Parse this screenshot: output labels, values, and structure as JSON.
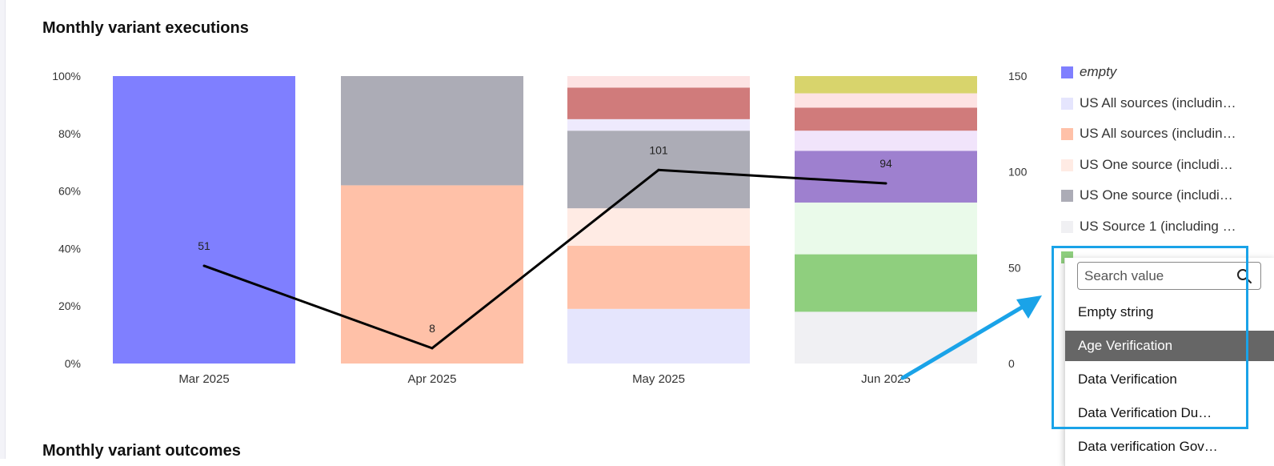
{
  "page": {
    "title": "Monthly variant executions",
    "next_section_title": "Monthly variant outcomes"
  },
  "chart_data": {
    "type": "bar",
    "stacked": true,
    "normalized": true,
    "categories": [
      "Mar 2025",
      "Apr 2025",
      "May 2025",
      "Jun 2025"
    ],
    "left_axis": {
      "ticks": [
        "0%",
        "20%",
        "40%",
        "60%",
        "80%",
        "100%"
      ],
      "ylim": [
        0,
        100
      ]
    },
    "right_axis": {
      "ticks": [
        "0",
        "50",
        "100",
        "150"
      ],
      "ylim": [
        0,
        150
      ]
    },
    "series": [
      {
        "name": "empty",
        "color": "#7f7fff",
        "values": [
          100,
          0,
          0,
          0
        ]
      },
      {
        "name": "US All sources (includin…",
        "color": "#e5e5fd",
        "values": [
          0,
          0,
          19,
          0
        ]
      },
      {
        "name": "US All sources (includin…",
        "color": "#ffc1a8",
        "values": [
          0,
          62,
          22,
          0
        ]
      },
      {
        "name": "US One source (includi…",
        "color": "#ffebe4",
        "values": [
          0,
          0,
          13,
          0
        ]
      },
      {
        "name": "US One source (includi…",
        "color": "#acacb6",
        "values": [
          0,
          38,
          27,
          0
        ]
      },
      {
        "name": "US Source 1 (including …",
        "color": "#f0f0f3",
        "values": [
          0,
          0,
          0,
          18
        ]
      },
      {
        "name": "",
        "color": "#8fcf7e",
        "values": [
          0,
          0,
          0,
          20
        ]
      },
      {
        "name": "",
        "color": "#eafaea",
        "values": [
          0,
          0,
          0,
          18
        ]
      },
      {
        "name": "",
        "color": "#9e80cf",
        "values": [
          0,
          0,
          0,
          18
        ]
      },
      {
        "name": "",
        "color": "#f1e4fb",
        "values": [
          0,
          0,
          0,
          7
        ]
      },
      {
        "name": "",
        "color": "#eeeafd",
        "values": [
          0,
          0,
          4,
          0
        ]
      },
      {
        "name": "",
        "color": "#d07b7b",
        "values": [
          0,
          0,
          11,
          8
        ]
      },
      {
        "name": "",
        "color": "#fde3e3",
        "values": [
          0,
          0,
          4,
          5
        ]
      },
      {
        "name": "",
        "color": "#d8d46c",
        "values": [
          0,
          0,
          0,
          6
        ]
      }
    ],
    "line": {
      "values": [
        51,
        8,
        101,
        94
      ],
      "labels": [
        "51",
        "8",
        "101",
        "94"
      ],
      "color": "#000000"
    },
    "legend_position": "right"
  },
  "legend": {
    "items": [
      {
        "label": "empty",
        "color": "#7f7fff",
        "italic": true
      },
      {
        "label": "US All sources (includin…",
        "color": "#e5e5fd",
        "italic": false
      },
      {
        "label": "US All sources (includin…",
        "color": "#ffc1a8",
        "italic": false
      },
      {
        "label": "US One source (includi…",
        "color": "#ffebe4",
        "italic": false
      },
      {
        "label": "US One source (includi…",
        "color": "#acacb6",
        "italic": false
      },
      {
        "label": "US Source 1 (including …",
        "color": "#f0f0f3",
        "italic": false
      }
    ],
    "partial_item_color": "#8fcf7e"
  },
  "dropdown": {
    "search_placeholder": "Search value",
    "options": [
      {
        "label": "Empty string",
        "selected": false
      },
      {
        "label": "Age Verification",
        "selected": true
      },
      {
        "label": "Data Verification",
        "selected": false
      },
      {
        "label": "Data Verification Du…",
        "selected": false
      },
      {
        "label": "Data verification Gov…",
        "selected": false
      }
    ]
  },
  "annotation": {
    "color": "#1aa3e8"
  }
}
